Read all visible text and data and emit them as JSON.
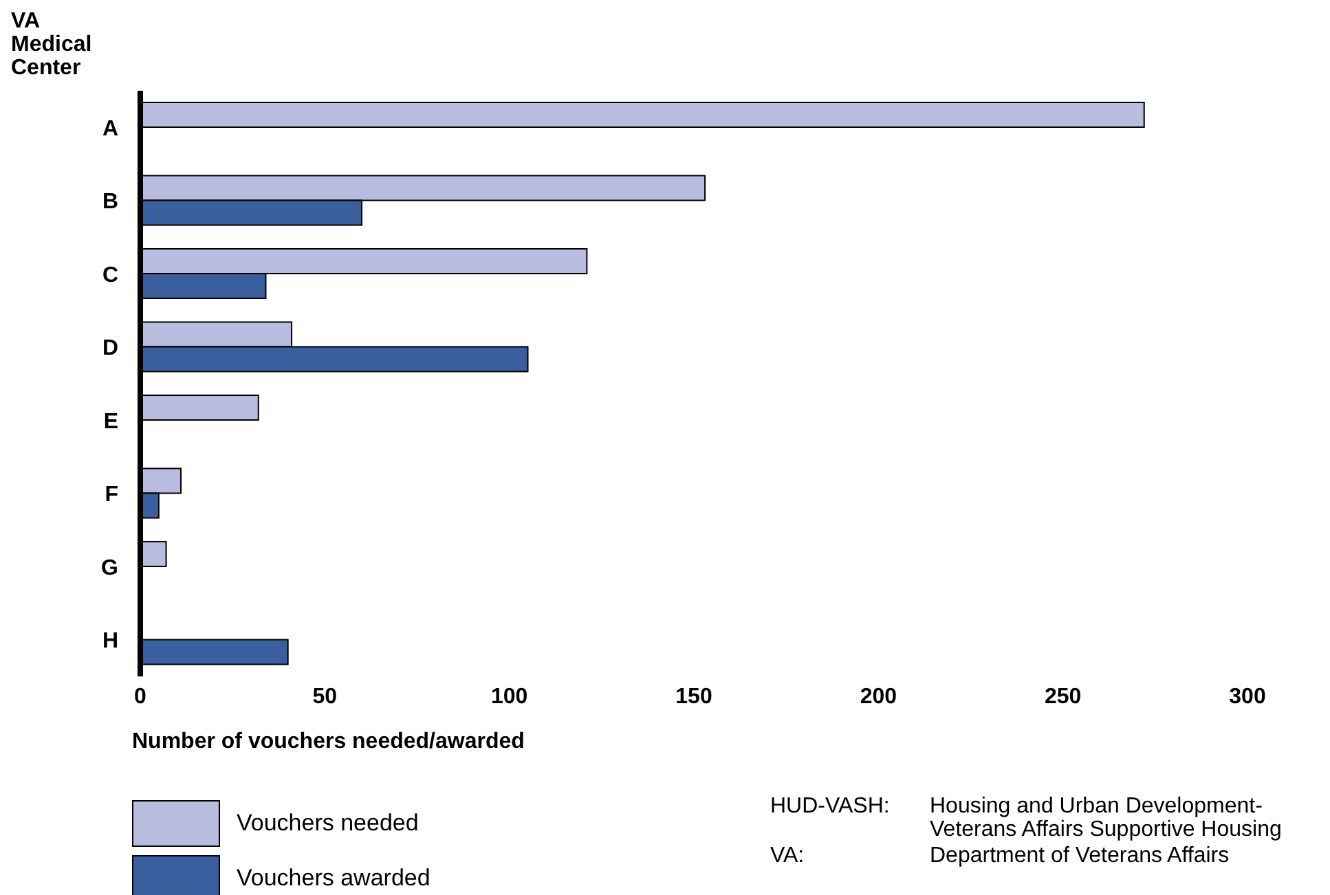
{
  "chart_data": {
    "type": "bar",
    "orientation": "horizontal",
    "ylabel": "VA Medical Center",
    "xlabel": "Number of vouchers needed/awarded",
    "categories": [
      "A",
      "B",
      "C",
      "D",
      "E",
      "F",
      "G",
      "H"
    ],
    "series": [
      {
        "name": "Vouchers needed",
        "color": "#b8bde0",
        "values": [
          272,
          153,
          121,
          41,
          32,
          11,
          7,
          null
        ]
      },
      {
        "name": "Vouchers awarded",
        "color": "#3a5f9e",
        "values": [
          null,
          60,
          34,
          105,
          null,
          5,
          null,
          40
        ]
      }
    ],
    "xlim": [
      0,
      300
    ],
    "xticks": [
      0,
      50,
      100,
      150,
      200,
      250,
      300
    ],
    "grid": false,
    "legend": "bottom left",
    "annotations": [
      "HUD-VASH: Housing and Urban Development-Veterans Affairs Supportive Housing",
      "VA: Department of Veterans Affairs"
    ]
  }
}
